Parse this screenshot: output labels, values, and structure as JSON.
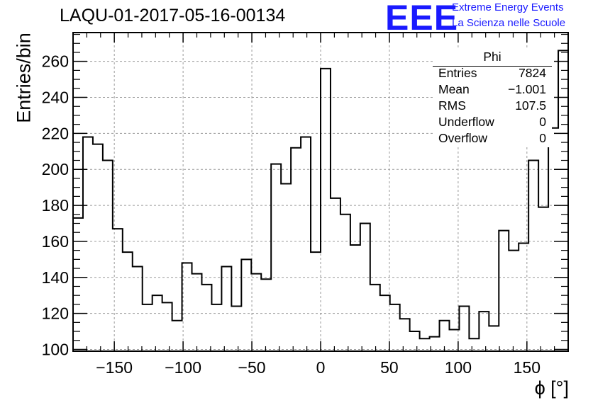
{
  "header": {
    "title": "LAQU-01-2017-05-16-00134",
    "logo_text": "EEE",
    "logo_line1": "Extreme Energy Events",
    "logo_line2": "La Scienza nelle Scuole"
  },
  "stats_box": {
    "title": "Phi",
    "rows": [
      {
        "label": "Entries",
        "value": "7824"
      },
      {
        "label": "Mean",
        "value": "−1.001"
      },
      {
        "label": "RMS",
        "value": "107.5"
      },
      {
        "label": "Underflow",
        "value": "0"
      },
      {
        "label": "Overflow",
        "value": "0"
      }
    ]
  },
  "chart_data": {
    "type": "bar",
    "style": "histogram-step",
    "xlabel": "ϕ [°]",
    "ylabel": "Entries/bin",
    "xlim": [
      -180,
      180
    ],
    "ylim": [
      99,
      276
    ],
    "grid": true,
    "x_ticks": [
      -150,
      -100,
      -50,
      0,
      50,
      100,
      150
    ],
    "y_ticks": [
      100,
      120,
      140,
      160,
      180,
      200,
      220,
      240,
      260
    ],
    "bin_width": 7.2,
    "bin_edges_start": -180,
    "values": [
      173,
      218,
      214,
      205,
      167,
      154,
      146,
      125,
      130,
      126,
      116,
      148,
      142,
      136,
      125,
      146,
      124,
      150,
      142,
      139,
      203,
      192,
      212,
      218,
      154,
      256,
      184,
      175,
      158,
      170,
      136,
      130,
      125,
      117,
      110,
      106,
      107,
      116,
      111,
      124,
      106,
      121,
      113,
      166,
      155,
      159,
      205,
      179,
      223,
      266
    ],
    "line_color": "#000000",
    "grid_color": "#999999"
  }
}
